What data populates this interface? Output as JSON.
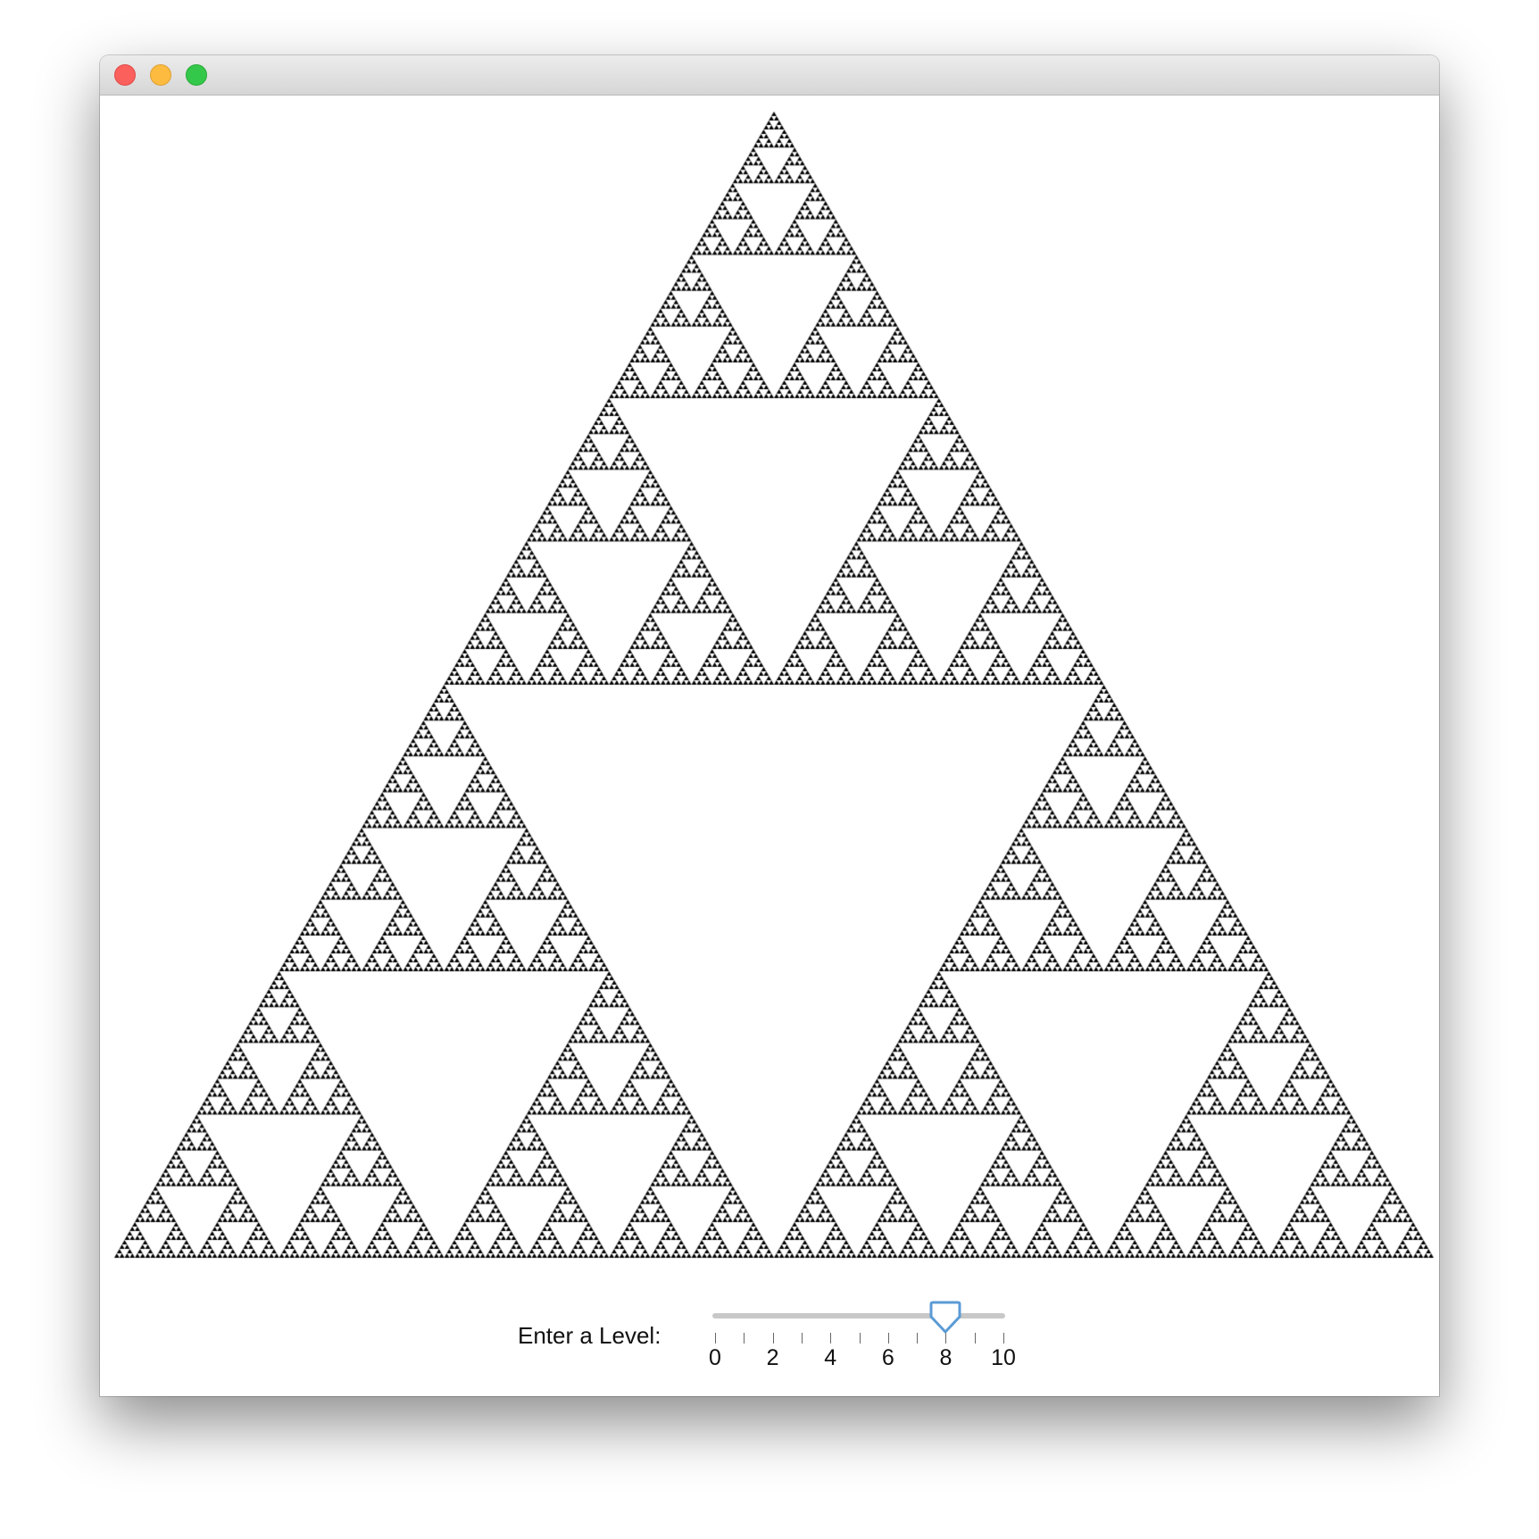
{
  "window": {
    "title": "",
    "controls": [
      "close",
      "minimize",
      "zoom"
    ],
    "colors": {
      "close": "#fc605c",
      "minimize": "#fdbc40",
      "zoom": "#34c84a"
    }
  },
  "canvas": {
    "content": "sierpinski-triangle",
    "depth": 8,
    "fill_color": "#000000",
    "background": "#ffffff"
  },
  "level_control": {
    "label": "Enter a Level:",
    "min": 0,
    "max": 10,
    "value": 8,
    "tick_labels": [
      "0",
      "2",
      "4",
      "6",
      "8",
      "10"
    ],
    "minor_tick_count": 11,
    "thumb_color": "#5b9bd5",
    "track_color": "#c8c8c8"
  }
}
